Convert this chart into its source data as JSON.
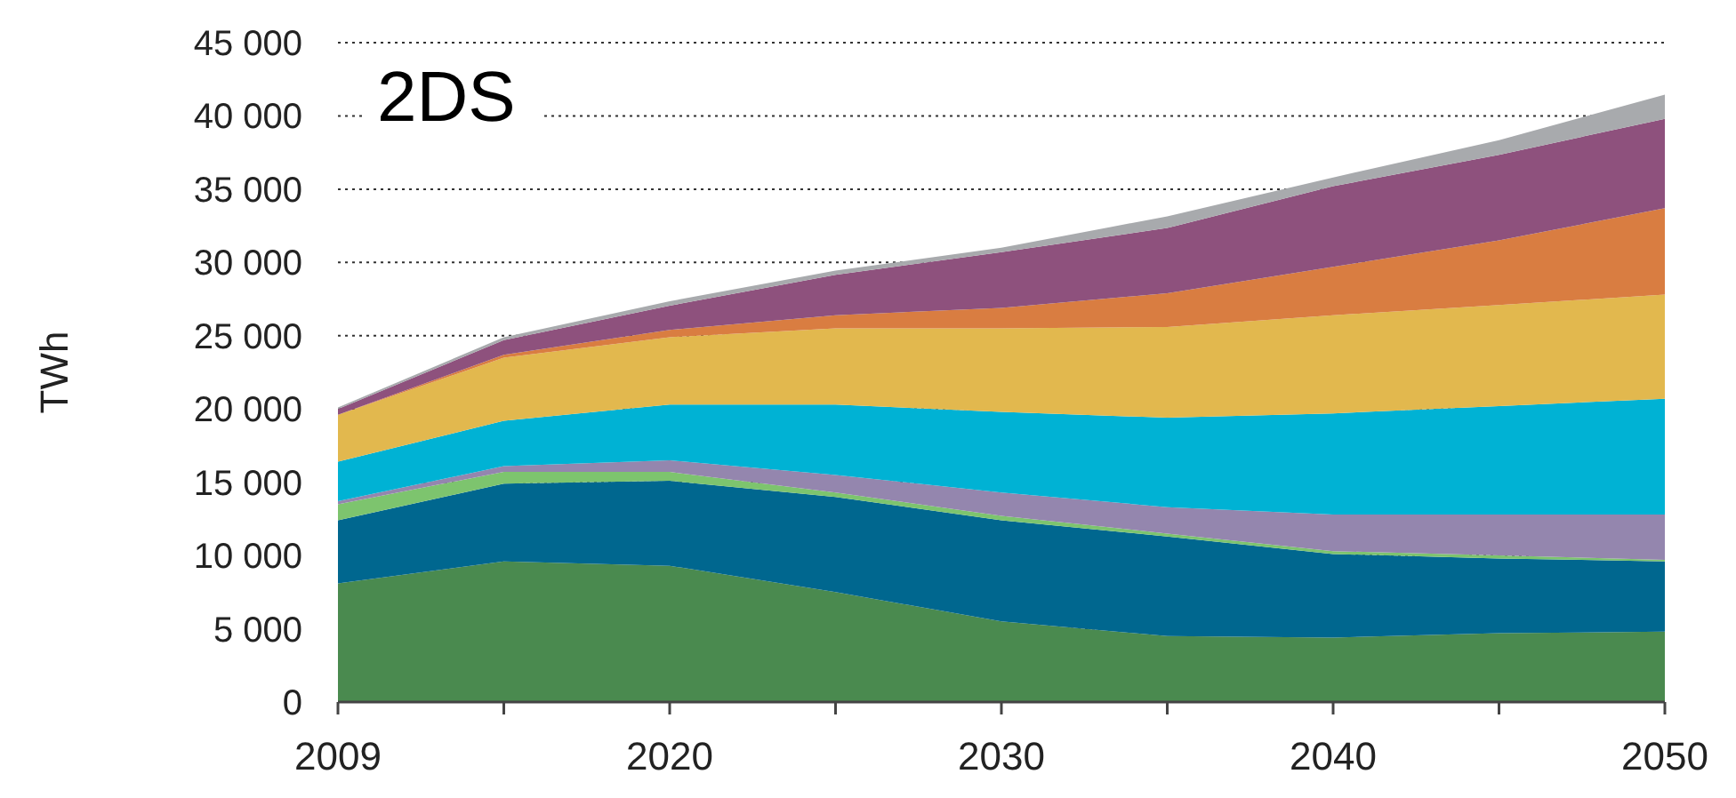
{
  "chart_data": {
    "type": "area",
    "stacked": true,
    "title": "2DS",
    "ylabel": "TWh",
    "categories": [
      "2009",
      null,
      "2020",
      null,
      "2030",
      null,
      "2040",
      null,
      "2050"
    ],
    "ylim": [
      0,
      45000
    ],
    "yticks": [
      {
        "value": 0,
        "label": "0"
      },
      {
        "value": 5000,
        "label": "5 000"
      },
      {
        "value": 10000,
        "label": "10 000"
      },
      {
        "value": 15000,
        "label": "15 000"
      },
      {
        "value": 20000,
        "label": "20 000"
      },
      {
        "value": 25000,
        "label": "25 000"
      },
      {
        "value": 30000,
        "label": "30 000"
      },
      {
        "value": 35000,
        "label": "35 000"
      },
      {
        "value": 40000,
        "label": "40 000"
      },
      {
        "value": 45000,
        "label": "45 000"
      }
    ],
    "grid": "y",
    "series": [
      {
        "color": "#4a8a4f",
        "values": [
          8100,
          9600,
          9300,
          7500,
          5500,
          4500,
          4400,
          4700,
          4800
        ]
      },
      {
        "color": "#00678f",
        "values": [
          4300,
          5300,
          5800,
          6500,
          6900,
          6800,
          5700,
          5100,
          4800
        ]
      },
      {
        "color": "#7dc46e",
        "values": [
          1100,
          800,
          600,
          300,
          300,
          200,
          200,
          200,
          100
        ]
      },
      {
        "color": "#9486ae",
        "values": [
          200,
          400,
          800,
          1200,
          1600,
          1800,
          2500,
          2800,
          3100
        ]
      },
      {
        "color": "#00b2d4",
        "values": [
          2700,
          3100,
          3800,
          4800,
          5500,
          6100,
          6900,
          7400,
          7900
        ]
      },
      {
        "color": "#e2b84e",
        "values": [
          3200,
          4300,
          4600,
          5200,
          5700,
          6200,
          6700,
          6900,
          7100
        ]
      },
      {
        "color": "#d97d41",
        "values": [
          0,
          200,
          500,
          900,
          1400,
          2300,
          3300,
          4400,
          5900
        ]
      },
      {
        "color": "#8e517d",
        "values": [
          400,
          1000,
          1650,
          2750,
          3800,
          4450,
          5500,
          5850,
          6100
        ]
      },
      {
        "color": "#a8aaad",
        "values": [
          100,
          200,
          300,
          300,
          300,
          800,
          600,
          1000,
          1650
        ]
      }
    ]
  }
}
